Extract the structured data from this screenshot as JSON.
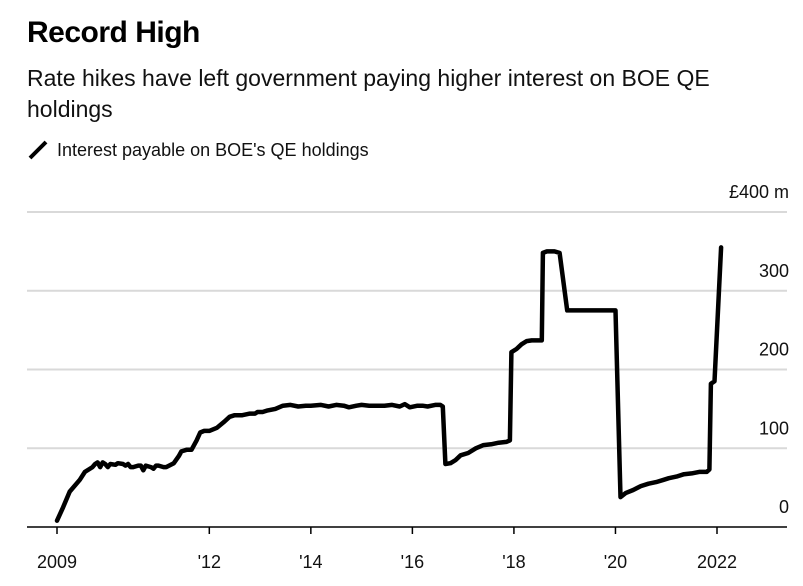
{
  "title": "Record High",
  "subtitle": "Rate hikes have left government paying higher interest on BOE QE holdings",
  "legend": {
    "label": "Interest payable on BOE's QE holdings"
  },
  "colors": {
    "line": "#000000",
    "grid": "#d9d9d9",
    "axis": "#000000",
    "text": "#111111"
  },
  "chart_data": {
    "type": "line",
    "title": "Record High",
    "subtitle": "Rate hikes have left government paying higher interest on BOE QE holdings",
    "xlabel": "",
    "ylabel": "£ m",
    "y_unit_label": "£400 m",
    "ylim": [
      0,
      400
    ],
    "xlim": [
      2009,
      2023.3
    ],
    "grid": true,
    "legend_position": "top-left",
    "y_ticks": [
      {
        "value": 0,
        "label": "0"
      },
      {
        "value": 100,
        "label": "100"
      },
      {
        "value": 200,
        "label": "200"
      },
      {
        "value": 300,
        "label": "300"
      },
      {
        "value": 400,
        "label": "£400 m"
      }
    ],
    "x_ticks": [
      {
        "value": 2009,
        "label": "2009"
      },
      {
        "value": 2012,
        "label": "'12"
      },
      {
        "value": 2014,
        "label": "'14"
      },
      {
        "value": 2016,
        "label": "'16"
      },
      {
        "value": 2018,
        "label": "'18"
      },
      {
        "value": 2020,
        "label": "'20"
      },
      {
        "value": 2022,
        "label": "2022"
      }
    ],
    "series": [
      {
        "name": "Interest payable on BOE's QE holdings",
        "points": [
          [
            2009.0,
            8
          ],
          [
            2009.12,
            25
          ],
          [
            2009.25,
            45
          ],
          [
            2009.45,
            60
          ],
          [
            2009.55,
            70
          ],
          [
            2009.7,
            76
          ],
          [
            2009.75,
            80
          ],
          [
            2009.8,
            82
          ],
          [
            2009.85,
            76
          ],
          [
            2009.9,
            82
          ],
          [
            2009.95,
            80
          ],
          [
            2010.0,
            76
          ],
          [
            2010.05,
            80
          ],
          [
            2010.15,
            79
          ],
          [
            2010.2,
            81
          ],
          [
            2010.3,
            80
          ],
          [
            2010.35,
            78
          ],
          [
            2010.4,
            80
          ],
          [
            2010.45,
            76
          ],
          [
            2010.5,
            76
          ],
          [
            2010.6,
            78
          ],
          [
            2010.65,
            78
          ],
          [
            2010.7,
            72
          ],
          [
            2010.75,
            78
          ],
          [
            2010.85,
            76
          ],
          [
            2010.9,
            74
          ],
          [
            2010.95,
            78
          ],
          [
            2011.0,
            78
          ],
          [
            2011.1,
            76
          ],
          [
            2011.15,
            76
          ],
          [
            2011.3,
            81
          ],
          [
            2011.4,
            90
          ],
          [
            2011.45,
            96
          ],
          [
            2011.55,
            98
          ],
          [
            2011.65,
            98
          ],
          [
            2011.75,
            110
          ],
          [
            2011.82,
            120
          ],
          [
            2011.9,
            122
          ],
          [
            2012.0,
            122
          ],
          [
            2012.15,
            126
          ],
          [
            2012.3,
            134
          ],
          [
            2012.4,
            140
          ],
          [
            2012.5,
            142
          ],
          [
            2012.65,
            142
          ],
          [
            2012.8,
            144
          ],
          [
            2012.9,
            144
          ],
          [
            2012.95,
            146
          ],
          [
            2013.05,
            146
          ],
          [
            2013.15,
            148
          ],
          [
            2013.3,
            150
          ],
          [
            2013.45,
            154
          ],
          [
            2013.6,
            155
          ],
          [
            2013.75,
            153
          ],
          [
            2013.9,
            154
          ],
          [
            2014.0,
            154
          ],
          [
            2014.2,
            155
          ],
          [
            2014.35,
            153
          ],
          [
            2014.5,
            155
          ],
          [
            2014.65,
            154
          ],
          [
            2014.75,
            152
          ],
          [
            2014.9,
            154
          ],
          [
            2015.0,
            155
          ],
          [
            2015.15,
            154
          ],
          [
            2015.3,
            154
          ],
          [
            2015.45,
            154
          ],
          [
            2015.6,
            155
          ],
          [
            2015.75,
            153
          ],
          [
            2015.85,
            156
          ],
          [
            2015.95,
            152
          ],
          [
            2016.1,
            154
          ],
          [
            2016.2,
            154
          ],
          [
            2016.3,
            153
          ],
          [
            2016.45,
            155
          ],
          [
            2016.55,
            155
          ],
          [
            2016.6,
            153
          ],
          [
            2016.65,
            80
          ],
          [
            2016.75,
            81
          ],
          [
            2016.85,
            85
          ],
          [
            2016.95,
            91
          ],
          [
            2017.1,
            94
          ],
          [
            2017.25,
            100
          ],
          [
            2017.4,
            104
          ],
          [
            2017.55,
            105
          ],
          [
            2017.7,
            107
          ],
          [
            2017.85,
            108
          ],
          [
            2017.92,
            110
          ],
          [
            2017.95,
            222
          ],
          [
            2018.05,
            226
          ],
          [
            2018.15,
            232
          ],
          [
            2018.25,
            236
          ],
          [
            2018.35,
            237
          ],
          [
            2018.5,
            237
          ],
          [
            2018.55,
            237
          ],
          [
            2018.57,
            348
          ],
          [
            2018.65,
            350
          ],
          [
            2018.8,
            350
          ],
          [
            2018.9,
            348
          ],
          [
            2019.05,
            275
          ],
          [
            2019.25,
            275
          ],
          [
            2019.5,
            275
          ],
          [
            2019.8,
            275
          ],
          [
            2020.0,
            275
          ],
          [
            2020.1,
            38
          ],
          [
            2020.2,
            43
          ],
          [
            2020.35,
            47
          ],
          [
            2020.5,
            52
          ],
          [
            2020.65,
            55
          ],
          [
            2020.8,
            57
          ],
          [
            2020.95,
            60
          ],
          [
            2021.05,
            62
          ],
          [
            2021.2,
            64
          ],
          [
            2021.35,
            67
          ],
          [
            2021.5,
            68
          ],
          [
            2021.65,
            70
          ],
          [
            2021.8,
            70
          ],
          [
            2021.85,
            73
          ],
          [
            2021.88,
            182
          ],
          [
            2021.95,
            185
          ],
          [
            2022.08,
            355
          ]
        ]
      }
    ]
  }
}
